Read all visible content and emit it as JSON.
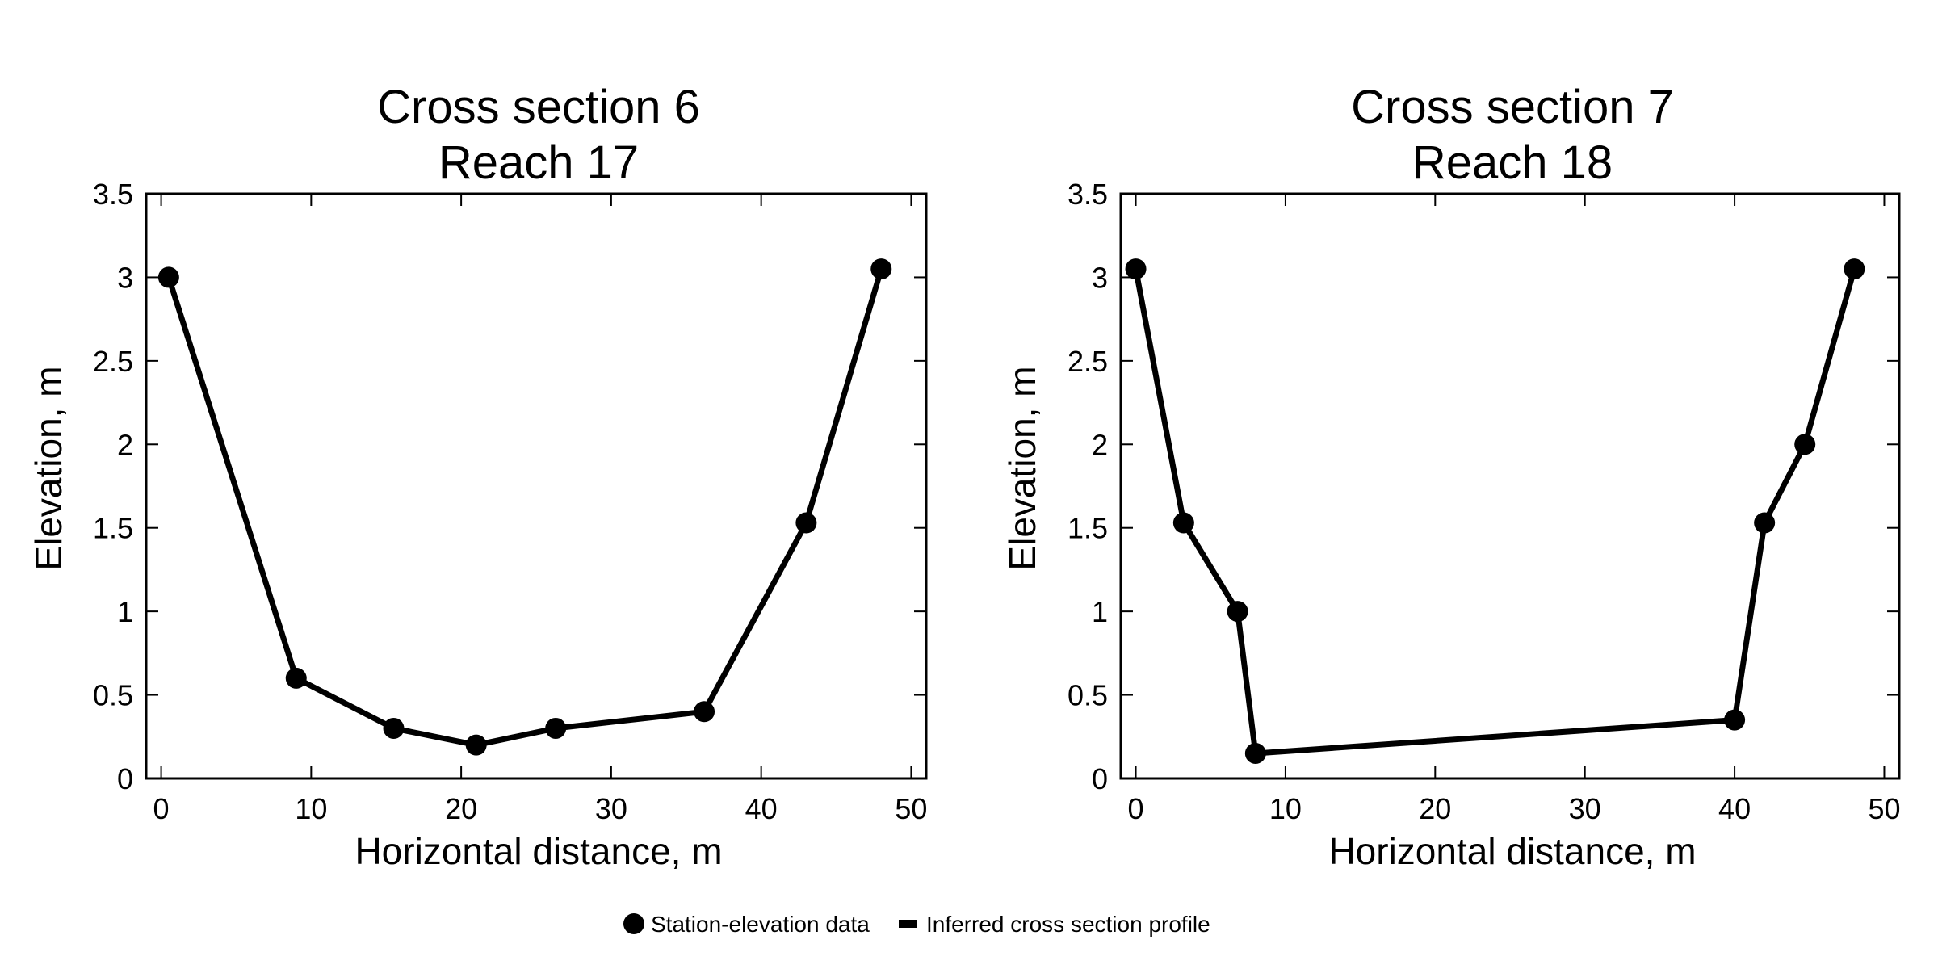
{
  "chart_data": [
    {
      "type": "line",
      "title_lines": [
        "Cross section 6",
        "Reach 17"
      ],
      "xlabel": "Horizontal distance, m",
      "ylabel": "Elevation, m",
      "xlim": [
        -1,
        51
      ],
      "ylim": [
        0,
        3.5
      ],
      "xticks": [
        "0",
        "10",
        "20",
        "30",
        "40",
        "50"
      ],
      "yticks": [
        "0",
        "0.5",
        "1",
        "1.5",
        "2",
        "2.5",
        "3",
        "3.5"
      ],
      "grid": false,
      "x": [
        0.5,
        9.0,
        15.5,
        21.0,
        26.3,
        36.2,
        43.0,
        48.0
      ],
      "y": [
        3.0,
        0.6,
        0.3,
        0.2,
        0.3,
        0.4,
        1.53,
        3.05
      ]
    },
    {
      "type": "line",
      "title_lines": [
        "Cross section 7",
        "Reach 18"
      ],
      "xlabel": "Horizontal distance, m",
      "ylabel": "Elevation, m",
      "xlim": [
        -1,
        51
      ],
      "ylim": [
        0,
        3.5
      ],
      "xticks": [
        "0",
        "10",
        "20",
        "30",
        "40",
        "50"
      ],
      "yticks": [
        "0",
        "0.5",
        "1",
        "1.5",
        "2",
        "2.5",
        "3",
        "3.5"
      ],
      "grid": false,
      "x": [
        0.0,
        3.2,
        6.8,
        8.0,
        40.0,
        42.0,
        44.7,
        48.0
      ],
      "y": [
        3.05,
        1.53,
        1.0,
        0.15,
        0.35,
        1.53,
        2.0,
        3.05
      ]
    }
  ],
  "legend": {
    "placement": "bottom-center",
    "items": [
      {
        "label": "Station-elevation data",
        "marker": "circle"
      },
      {
        "label": "Inferred cross section profile",
        "marker": "line"
      }
    ]
  },
  "colors": {
    "series": "#000000",
    "axes": "#000000"
  }
}
